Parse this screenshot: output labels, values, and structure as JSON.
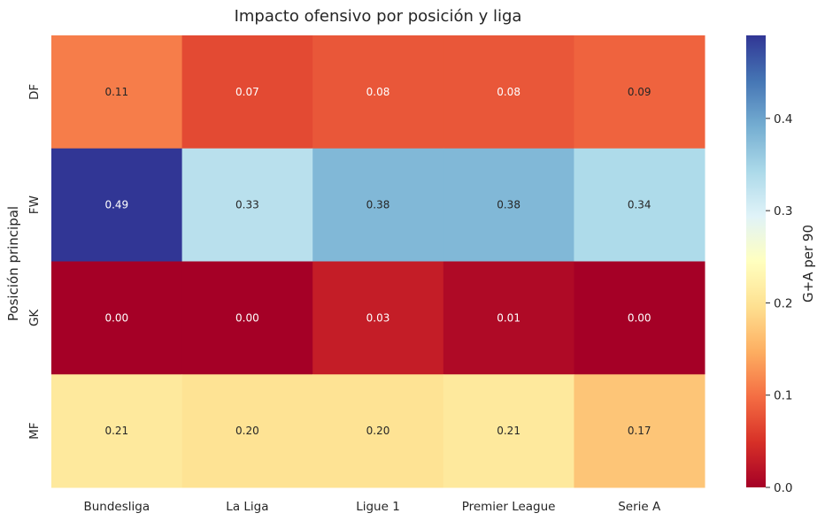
{
  "chart_data": {
    "type": "heatmap",
    "title": "Impacto ofensivo por posición y liga",
    "xlabel": "",
    "ylabel": "Posición principal",
    "x_categories": [
      "Bundesliga",
      "La Liga",
      "Ligue 1",
      "Premier League",
      "Serie A"
    ],
    "y_categories": [
      "DF",
      "FW",
      "GK",
      "MF"
    ],
    "values": [
      [
        0.11,
        0.07,
        0.08,
        0.08,
        0.09
      ],
      [
        0.49,
        0.33,
        0.38,
        0.38,
        0.34
      ],
      [
        0.0,
        0.0,
        0.03,
        0.01,
        0.0
      ],
      [
        0.21,
        0.2,
        0.2,
        0.21,
        0.17
      ]
    ],
    "labels": [
      [
        "0.11",
        "0.07",
        "0.08",
        "0.08",
        "0.09"
      ],
      [
        "0.49",
        "0.33",
        "0.38",
        "0.38",
        "0.34"
      ],
      [
        "0.00",
        "0.00",
        "0.03",
        "0.01",
        "0.00"
      ],
      [
        "0.21",
        "0.20",
        "0.20",
        "0.21",
        "0.17"
      ]
    ],
    "colormap": "RdYlBu",
    "vmin": 0.0,
    "vmax": 0.49,
    "colorbar": {
      "label": "G+A per 90",
      "ticks": [
        0.0,
        0.1,
        0.2,
        0.3,
        0.4
      ],
      "tick_labels": [
        "0.0",
        "0.1",
        "0.2",
        "0.3",
        "0.4"
      ]
    },
    "grid": false
  }
}
